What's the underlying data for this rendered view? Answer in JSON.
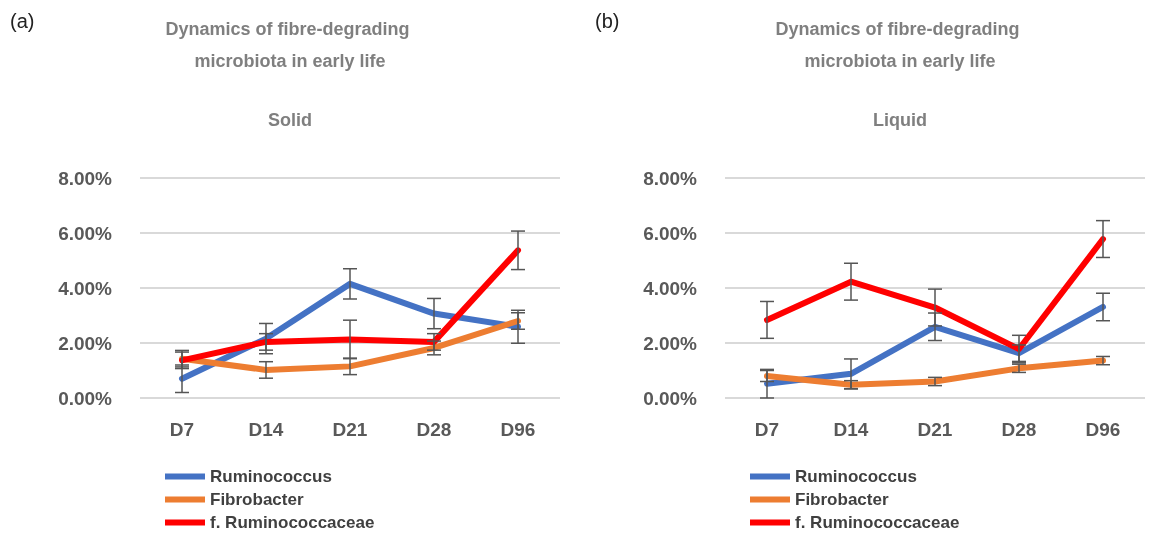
{
  "chart_data": [
    {
      "type": "line",
      "title": "Dynamics of fibre-degrading microbiota in early life",
      "subtitle": "Solid",
      "annotations": [
        "(a)"
      ],
      "categories": [
        "D7",
        "D14",
        "D21",
        "D28",
        "D96"
      ],
      "series": [
        {
          "name": "Ruminococcus",
          "color": "#4472c4",
          "values": [
            0.7,
            2.16,
            4.15,
            3.07,
            2.59
          ],
          "errors": [
            0.5,
            0.55,
            0.55,
            0.55,
            0.6
          ]
        },
        {
          "name": "Fibrobacter",
          "color": "#ed7d31",
          "values": [
            1.43,
            1.02,
            1.15,
            1.82,
            2.8
          ],
          "errors": [
            0.3,
            0.3,
            0.3,
            0.25,
            0.3
          ]
        },
        {
          "name": "f. Ruminococcaceae",
          "color": "#ff0000",
          "values": [
            1.37,
            2.04,
            2.13,
            2.04,
            5.37
          ],
          "errors": [
            0.3,
            0.3,
            0.7,
            0.3,
            0.7
          ]
        }
      ],
      "ylim": [
        0,
        8
      ],
      "yticks": [
        {
          "value": 0,
          "label": "0.00%"
        },
        {
          "value": 2,
          "label": "2.00%"
        },
        {
          "value": 4,
          "label": "4.00%"
        },
        {
          "value": 6,
          "label": "6.00%"
        },
        {
          "value": 8,
          "label": "8.00%"
        }
      ],
      "grid": "y",
      "legend": "bottom left",
      "marker": "none",
      "line_style": "solid"
    },
    {
      "type": "line",
      "title": "Dynamics of fibre-degrading microbiota in early life",
      "subtitle": "Liquid",
      "annotations": [
        "(b)"
      ],
      "categories": [
        "D7",
        "D14",
        "D21",
        "D28",
        "D96"
      ],
      "series": [
        {
          "name": "Ruminococcus",
          "color": "#4472c4",
          "values": [
            0.52,
            0.88,
            2.59,
            1.63,
            3.31
          ],
          "errors": [
            0.52,
            0.54,
            0.5,
            0.3,
            0.5
          ]
        },
        {
          "name": "Fibrobacter",
          "color": "#ed7d31",
          "values": [
            0.8,
            0.48,
            0.6,
            1.08,
            1.36
          ],
          "errors": [
            0.2,
            0.15,
            0.15,
            0.15,
            0.15
          ]
        },
        {
          "name": "f. Ruminococcaceae",
          "color": "#ff0000",
          "values": [
            2.84,
            4.23,
            3.29,
            1.78,
            5.78
          ],
          "errors": [
            0.67,
            0.67,
            0.67,
            0.5,
            0.67
          ]
        }
      ],
      "ylim": [
        0,
        8
      ],
      "yticks": [
        {
          "value": 0,
          "label": "0.00%"
        },
        {
          "value": 2,
          "label": "2.00%"
        },
        {
          "value": 4,
          "label": "4.00%"
        },
        {
          "value": 6,
          "label": "6.00%"
        },
        {
          "value": 8,
          "label": "8.00%"
        }
      ],
      "grid": "y",
      "legend": "bottom left",
      "marker": "none",
      "line_style": "solid"
    }
  ]
}
